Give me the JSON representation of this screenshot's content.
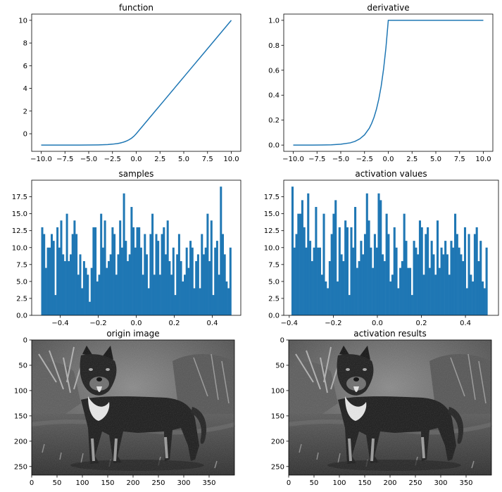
{
  "chart_data": [
    {
      "type": "line",
      "title": "function",
      "xlim": [
        -11,
        11
      ],
      "ylim": [
        -1.55,
        10.55
      ],
      "xticks": [
        -10.0,
        -7.5,
        -5.0,
        -2.5,
        0.0,
        2.5,
        5.0,
        7.5,
        10.0
      ],
      "xtick_labels": [
        "−10.0",
        "−7.5",
        "−5.0",
        "−2.5",
        "0.0",
        "2.5",
        "5.0",
        "7.5",
        "10.0"
      ],
      "yticks": [
        0,
        2,
        4,
        6,
        8,
        10
      ],
      "ytick_labels": [
        "0",
        "2",
        "4",
        "6",
        "8",
        "10"
      ],
      "color": "#1f77b4",
      "series": [
        {
          "x": [
            -10,
            -9,
            -8,
            -7,
            -6,
            -5,
            -4,
            -3.5,
            -3,
            -2.5,
            -2,
            -1.75,
            -1.5,
            -1.25,
            -1,
            -0.75,
            -0.5,
            -0.25,
            0,
            1,
            2,
            3,
            4,
            5,
            6,
            7,
            8,
            9,
            10
          ],
          "y": [
            -1.0,
            -1.0,
            -1.0,
            -0.999,
            -0.998,
            -0.993,
            -0.982,
            -0.97,
            -0.95,
            -0.918,
            -0.865,
            -0.826,
            -0.777,
            -0.713,
            -0.632,
            -0.528,
            -0.393,
            -0.221,
            0,
            1,
            2,
            3,
            4,
            5,
            6,
            7,
            8,
            9,
            10
          ]
        }
      ]
    },
    {
      "type": "line",
      "title": "derivative",
      "xlim": [
        -11,
        11
      ],
      "ylim": [
        -0.05,
        1.05
      ],
      "xticks": [
        -10.0,
        -7.5,
        -5.0,
        -2.5,
        0.0,
        2.5,
        5.0,
        7.5,
        10.0
      ],
      "xtick_labels": [
        "−10.0",
        "−7.5",
        "−5.0",
        "−2.5",
        "0.0",
        "2.5",
        "5.0",
        "7.5",
        "10.0"
      ],
      "yticks": [
        0.0,
        0.2,
        0.4,
        0.6,
        0.8,
        1.0
      ],
      "ytick_labels": [
        "0.0",
        "0.2",
        "0.4",
        "0.6",
        "0.8",
        "1.0"
      ],
      "color": "#1f77b4",
      "series": [
        {
          "x": [
            -10,
            -9,
            -8,
            -7,
            -6,
            -5,
            -4,
            -3.5,
            -3,
            -2.5,
            -2,
            -1.75,
            -1.5,
            -1.25,
            -1,
            -0.75,
            -0.5,
            -0.25,
            0,
            1,
            2,
            3,
            4,
            5,
            6,
            7,
            8,
            9,
            10
          ],
          "y": [
            0.0,
            0.0,
            0.0,
            0.001,
            0.002,
            0.007,
            0.018,
            0.03,
            0.05,
            0.082,
            0.135,
            0.174,
            0.223,
            0.287,
            0.368,
            0.472,
            0.607,
            0.779,
            1,
            1,
            1,
            1,
            1,
            1,
            1,
            1,
            1,
            1,
            1
          ]
        }
      ]
    },
    {
      "type": "bar",
      "title": "samples",
      "xlim": [
        -0.55,
        0.55
      ],
      "ylim": [
        0,
        19.95
      ],
      "xticks": [
        -0.4,
        -0.2,
        0.0,
        0.2,
        0.4
      ],
      "xtick_labels": [
        "−0.4",
        "−0.2",
        "0.0",
        "0.2",
        "0.4"
      ],
      "yticks": [
        0.0,
        2.5,
        5.0,
        7.5,
        10.0,
        12.5,
        15.0,
        17.5
      ],
      "ytick_labels": [
        "0.0",
        "2.5",
        "5.0",
        "7.5",
        "10.0",
        "12.5",
        "15.0",
        "17.5"
      ],
      "color": "#1f77b4",
      "bin_start": -0.5,
      "bin_end": 0.5,
      "values": [
        13,
        12,
        7,
        10,
        10,
        12,
        11,
        3,
        13,
        10,
        14,
        9,
        8,
        15,
        8,
        9,
        12,
        14,
        12,
        6,
        9,
        4,
        8,
        7,
        6,
        2,
        7,
        13,
        13,
        5,
        6,
        15,
        10,
        14,
        7,
        8,
        9,
        13,
        12,
        6,
        9,
        14,
        10,
        18,
        11,
        8,
        9,
        16,
        13,
        10,
        13,
        13,
        10,
        6,
        12,
        9,
        4,
        12,
        15,
        6,
        12,
        11,
        6,
        12,
        13,
        9,
        14,
        8,
        6,
        10,
        3,
        9,
        12,
        8,
        5,
        6,
        10,
        7,
        11,
        10,
        4,
        8,
        9,
        4,
        12,
        9,
        10,
        15,
        8,
        14,
        3,
        10,
        11,
        6,
        19,
        12,
        9,
        5,
        4,
        10
      ]
    },
    {
      "type": "bar",
      "title": "activation values",
      "xlim": [
        -0.425,
        0.55
      ],
      "ylim": [
        0,
        19.95
      ],
      "xticks": [
        -0.4,
        -0.2,
        0.0,
        0.2,
        0.4
      ],
      "xtick_labels": [
        "−0.4",
        "−0.2",
        "0.0",
        "0.2",
        "0.4"
      ],
      "yticks": [
        0.0,
        2.5,
        5.0,
        7.5,
        10.0,
        12.5,
        15.0,
        17.5
      ],
      "ytick_labels": [
        "0.0",
        "2.5",
        "5.0",
        "7.5",
        "10.0",
        "12.5",
        "15.0",
        "17.5"
      ],
      "color": "#1f77b4",
      "bin_start": -0.39,
      "bin_end": 0.5,
      "values": [
        19,
        10,
        12,
        15,
        15,
        17,
        13,
        10,
        18,
        11,
        8,
        10,
        16,
        10,
        10,
        6,
        15,
        5,
        4,
        8,
        12,
        15,
        17,
        5,
        13,
        9,
        8,
        14,
        13,
        3,
        13,
        10,
        16,
        7,
        8,
        11,
        9,
        12,
        18,
        14,
        10,
        7,
        12,
        10,
        18,
        17,
        9,
        8,
        15,
        12,
        5,
        6,
        13,
        10,
        4,
        7,
        8,
        15,
        11,
        7,
        7,
        3,
        11,
        10,
        9,
        14,
        13,
        6,
        12,
        13,
        7,
        11,
        9,
        6,
        14,
        7,
        10,
        9,
        11,
        9,
        6,
        11,
        10,
        15,
        12,
        10,
        9,
        8,
        13,
        4,
        12,
        6,
        5,
        12,
        13,
        8,
        11,
        5,
        4,
        10
      ]
    },
    {
      "type": "image",
      "title": "origin image",
      "xlim": [
        0,
        400
      ],
      "ylim": [
        267,
        0
      ],
      "xticks": [
        0,
        50,
        100,
        150,
        200,
        250,
        300,
        350
      ],
      "yticks": [
        0,
        50,
        100,
        150,
        200,
        250
      ]
    },
    {
      "type": "image",
      "title": "activation results",
      "xlim": [
        0,
        400
      ],
      "ylim": [
        267,
        0
      ],
      "xticks": [
        0,
        50,
        100,
        150,
        200,
        250,
        300,
        350
      ],
      "yticks": [
        0,
        50,
        100,
        150,
        200,
        250
      ]
    }
  ]
}
